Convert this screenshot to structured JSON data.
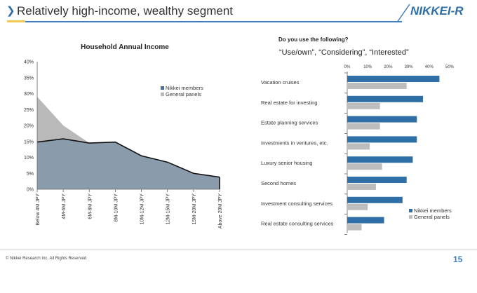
{
  "header": {
    "title": "Relatively high-income, wealthy segment",
    "brand": "NIKKEI-R"
  },
  "chart_data": [
    {
      "type": "area",
      "title": "Household Annual Income",
      "categories": [
        "Below 4M JPY",
        "4M-6M JPY",
        "6M-8M JPY",
        "8M-10M JPY",
        "10M-12M JPY",
        "12M-15M JPY",
        "15M-20M JPY",
        "Above 20M JPY"
      ],
      "series": [
        {
          "name": "Nikkei members",
          "values": [
            14.8,
            15.8,
            14.5,
            14.8,
            10.5,
            8.5,
            5.0,
            3.8
          ]
        },
        {
          "name": "General panels",
          "values": [
            29.0,
            20.0,
            14.5,
            14.5,
            10.5,
            8.5,
            5.0,
            3.5
          ]
        }
      ],
      "ylim": [
        0,
        40
      ],
      "yticks": [
        "0%",
        "5%",
        "10%",
        "15%",
        "20%",
        "25%",
        "30%",
        "35%",
        "40%"
      ],
      "legend_position": "right",
      "colors": {
        "Nikkei members": "#8a9cab",
        "General panels": "#b9b9b9",
        "line": "#111111"
      }
    },
    {
      "type": "bar",
      "orientation": "horizontal",
      "title": "Do you use the following?",
      "subtitle": "“Use/own”, “Considering”, “Interested”",
      "categories": [
        "Vacation cruises",
        "Real estate for investing",
        "Estate planning services",
        "Investments in ventures, etc.",
        "Luxury senior housing",
        "Second homes",
        "Investment consulting services",
        "Real estate consulting services"
      ],
      "series": [
        {
          "name": "Nikkei members",
          "values": [
            45,
            37,
            34,
            34,
            32,
            29,
            27,
            18
          ]
        },
        {
          "name": "General panels",
          "values": [
            29,
            16,
            16,
            11,
            17,
            14,
            10,
            7
          ]
        }
      ],
      "xlim": [
        0,
        50
      ],
      "xticks": [
        "0%",
        "10%",
        "20%",
        "30%",
        "40%",
        "50%"
      ],
      "legend_position": "bottom-right",
      "colors": {
        "Nikkei members": "#2f6fa8",
        "General panels": "#bdbdbd"
      }
    }
  ],
  "footer": {
    "copyright": "© Nikkei Research Inc. All Rights Reserved",
    "page_number": "15"
  }
}
